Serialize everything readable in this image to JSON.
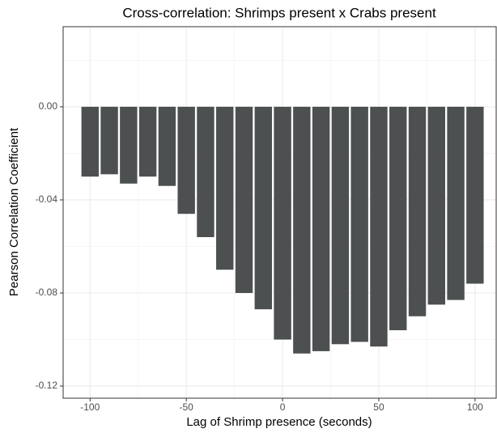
{
  "chart_data": {
    "type": "bar",
    "title": "Cross-correlation: Shrimps present x Crabs present",
    "x_label": "Lag of Shrimp presence (seconds)",
    "y_label": "Pearson Correlation Coefficient",
    "x": [
      -100,
      -90,
      -80,
      -70,
      -60,
      -50,
      -40,
      -30,
      -20,
      -10,
      0,
      10,
      20,
      30,
      40,
      50,
      60,
      70,
      80,
      90,
      100
    ],
    "values": [
      -0.03,
      -0.029,
      -0.033,
      -0.03,
      -0.034,
      -0.046,
      -0.056,
      -0.07,
      -0.08,
      -0.087,
      -0.1,
      -0.106,
      -0.105,
      -0.102,
      -0.101,
      -0.103,
      -0.096,
      -0.09,
      -0.085,
      -0.083,
      -0.076
    ],
    "color": "#4d5051",
    "xlim": [
      -114,
      111
    ],
    "ylim": [
      -0.1252,
      0.0344
    ],
    "xticks": [
      -100,
      -50,
      0,
      50,
      100
    ],
    "yticks": [
      {
        "value": 0,
        "label": "0.00"
      },
      {
        "value": -0.04,
        "label": "-0.04"
      },
      {
        "value": -0.08,
        "label": "-0.08"
      },
      {
        "value": -0.12,
        "label": "-0.12"
      }
    ],
    "grid": true
  }
}
